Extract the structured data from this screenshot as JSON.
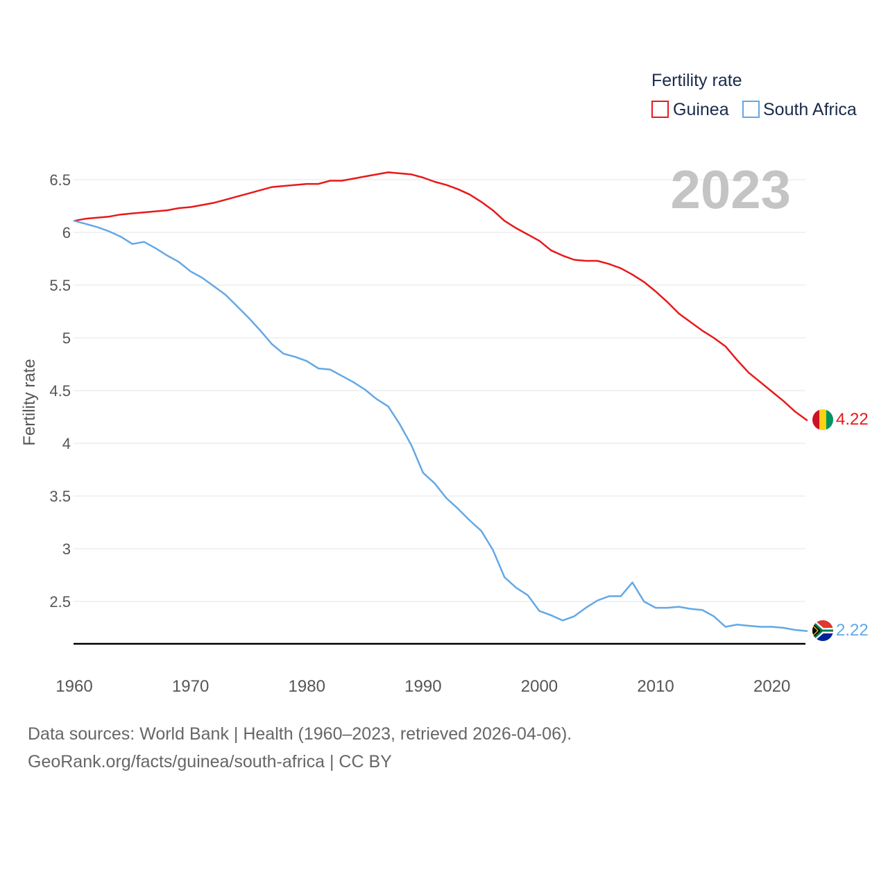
{
  "chart_data": {
    "type": "line",
    "title": "",
    "year_label": "2023",
    "ylabel": "Fertility rate",
    "xlabel": "",
    "xlim": [
      1960,
      2023
    ],
    "ylim": [
      2.1,
      6.75
    ],
    "y_ticks": [
      "2.5",
      "3",
      "3.5",
      "4",
      "4.5",
      "5",
      "5.5",
      "6",
      "6.5"
    ],
    "x_ticks": [
      "1960",
      "1970",
      "1980",
      "1990",
      "2000",
      "2010",
      "2020"
    ],
    "legend": {
      "title": "Fertility rate",
      "position": "top-right",
      "entries": [
        "Guinea",
        "South Africa"
      ]
    },
    "x": [
      1960,
      1961,
      1962,
      1963,
      1964,
      1965,
      1966,
      1967,
      1968,
      1969,
      1970,
      1971,
      1972,
      1973,
      1974,
      1975,
      1976,
      1977,
      1978,
      1979,
      1980,
      1981,
      1982,
      1983,
      1984,
      1985,
      1986,
      1987,
      1988,
      1989,
      1990,
      1991,
      1992,
      1993,
      1994,
      1995,
      1996,
      1997,
      1998,
      1999,
      2000,
      2001,
      2002,
      2003,
      2004,
      2005,
      2006,
      2007,
      2008,
      2009,
      2010,
      2011,
      2012,
      2013,
      2014,
      2015,
      2016,
      2017,
      2018,
      2019,
      2020,
      2021,
      2022,
      2023
    ],
    "series": [
      {
        "name": "Guinea",
        "color": "#e8191a",
        "end_label": "4.22",
        "flag": "guinea-flag",
        "values": [
          6.11,
          6.13,
          6.14,
          6.15,
          6.17,
          6.18,
          6.19,
          6.2,
          6.21,
          6.23,
          6.24,
          6.26,
          6.28,
          6.31,
          6.34,
          6.37,
          6.4,
          6.43,
          6.44,
          6.45,
          6.46,
          6.46,
          6.49,
          6.49,
          6.51,
          6.53,
          6.55,
          6.57,
          6.56,
          6.55,
          6.52,
          6.48,
          6.45,
          6.41,
          6.36,
          6.29,
          6.21,
          6.11,
          6.04,
          5.98,
          5.92,
          5.83,
          5.78,
          5.74,
          5.73,
          5.73,
          5.7,
          5.66,
          5.6,
          5.53,
          5.44,
          5.34,
          5.23,
          5.15,
          5.07,
          5.0,
          4.92,
          4.79,
          4.67,
          4.58,
          4.49,
          4.4,
          4.3,
          4.22
        ]
      },
      {
        "name": "South Africa",
        "color": "#62a8e6",
        "end_label": "2.22",
        "flag": "south-africa-flag",
        "values": [
          6.11,
          6.08,
          6.05,
          6.01,
          5.96,
          5.89,
          5.91,
          5.85,
          5.78,
          5.72,
          5.63,
          5.57,
          5.49,
          5.41,
          5.3,
          5.19,
          5.07,
          4.94,
          4.85,
          4.82,
          4.78,
          4.71,
          4.7,
          4.64,
          4.58,
          4.51,
          4.42,
          4.35,
          4.18,
          3.98,
          3.72,
          3.62,
          3.48,
          3.38,
          3.27,
          3.17,
          2.99,
          2.73,
          2.63,
          2.56,
          2.41,
          2.37,
          2.32,
          2.36,
          2.44,
          2.51,
          2.55,
          2.55,
          2.68,
          2.5,
          2.44,
          2.44,
          2.45,
          2.43,
          2.42,
          2.36,
          2.26,
          2.28,
          2.27,
          2.26,
          2.26,
          2.25,
          2.23,
          2.22
        ]
      }
    ]
  },
  "footer": {
    "line1": "Data sources: World Bank | Health (1960–2023, retrieved 2026-04-06).",
    "line2": "GeoRank.org/facts/guinea/south-africa | CC BY"
  }
}
